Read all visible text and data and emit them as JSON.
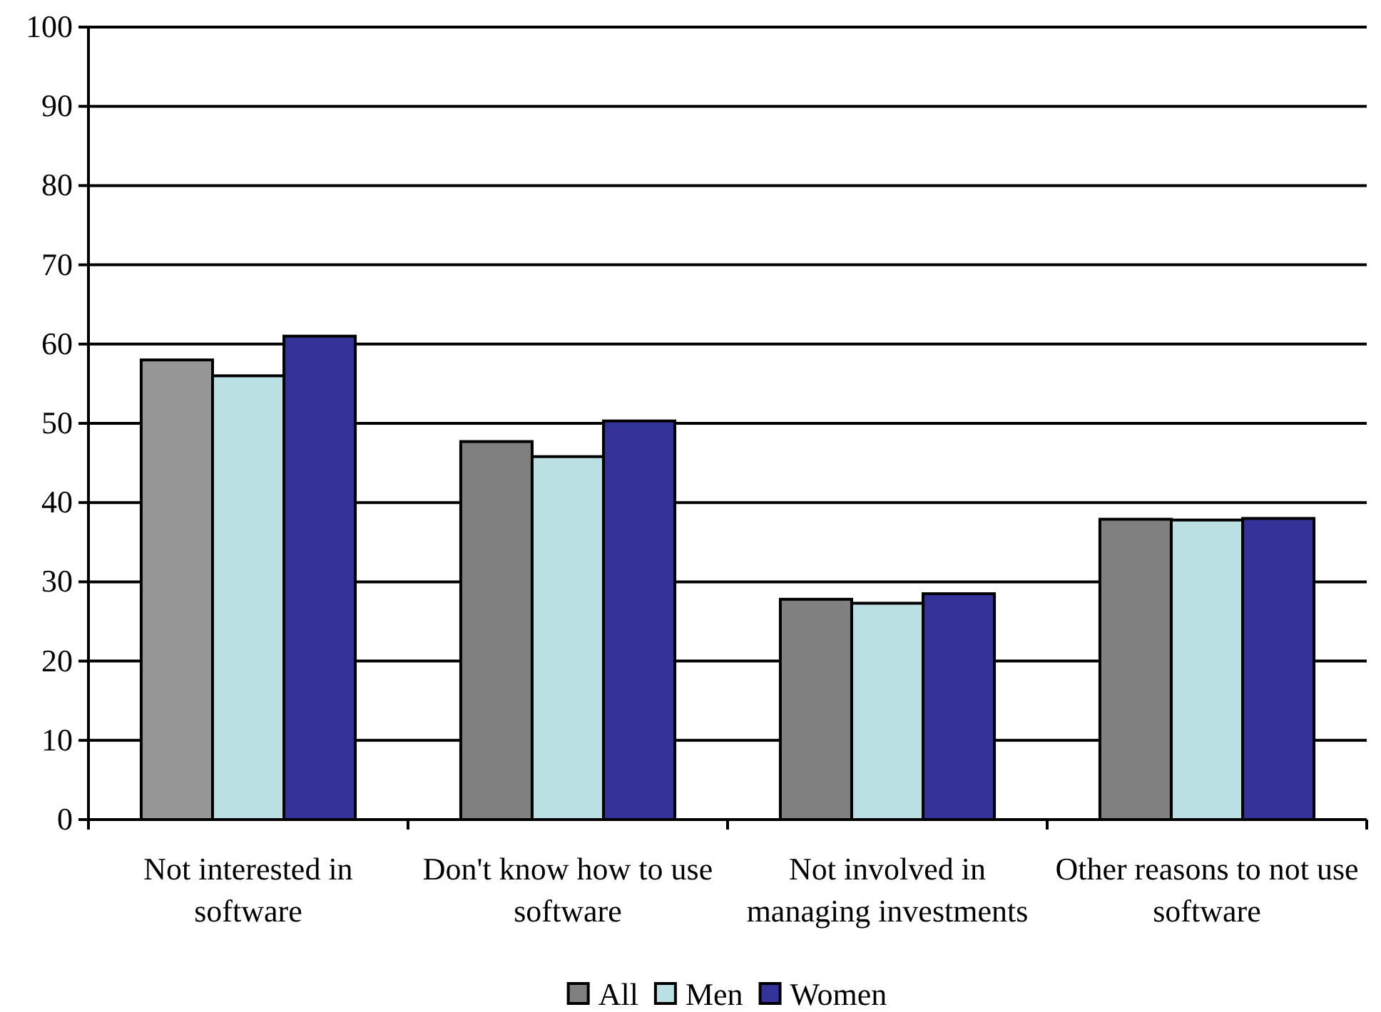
{
  "chart_data": {
    "type": "bar",
    "categories": [
      "Not interested in software",
      "Don't know how to use software",
      "Not involved in managing investments",
      "Other reasons to not use software"
    ],
    "series": [
      {
        "name": "All",
        "color": "#808080",
        "colors": [
          "#969696",
          "#808080",
          "#808080",
          "#808080"
        ],
        "values": [
          58,
          47.7,
          27.8,
          37.9
        ]
      },
      {
        "name": "Men",
        "color": "#bbe0e3",
        "values": [
          56,
          45.8,
          27.3,
          37.8
        ]
      },
      {
        "name": "Women",
        "color": "#333399",
        "values": [
          61,
          50.3,
          28.5,
          38
        ]
      }
    ],
    "ylim": [
      0,
      100
    ],
    "yticks": [
      0,
      10,
      20,
      30,
      40,
      50,
      60,
      70,
      80,
      90,
      100
    ],
    "grid": "y",
    "legend": "bottom"
  }
}
